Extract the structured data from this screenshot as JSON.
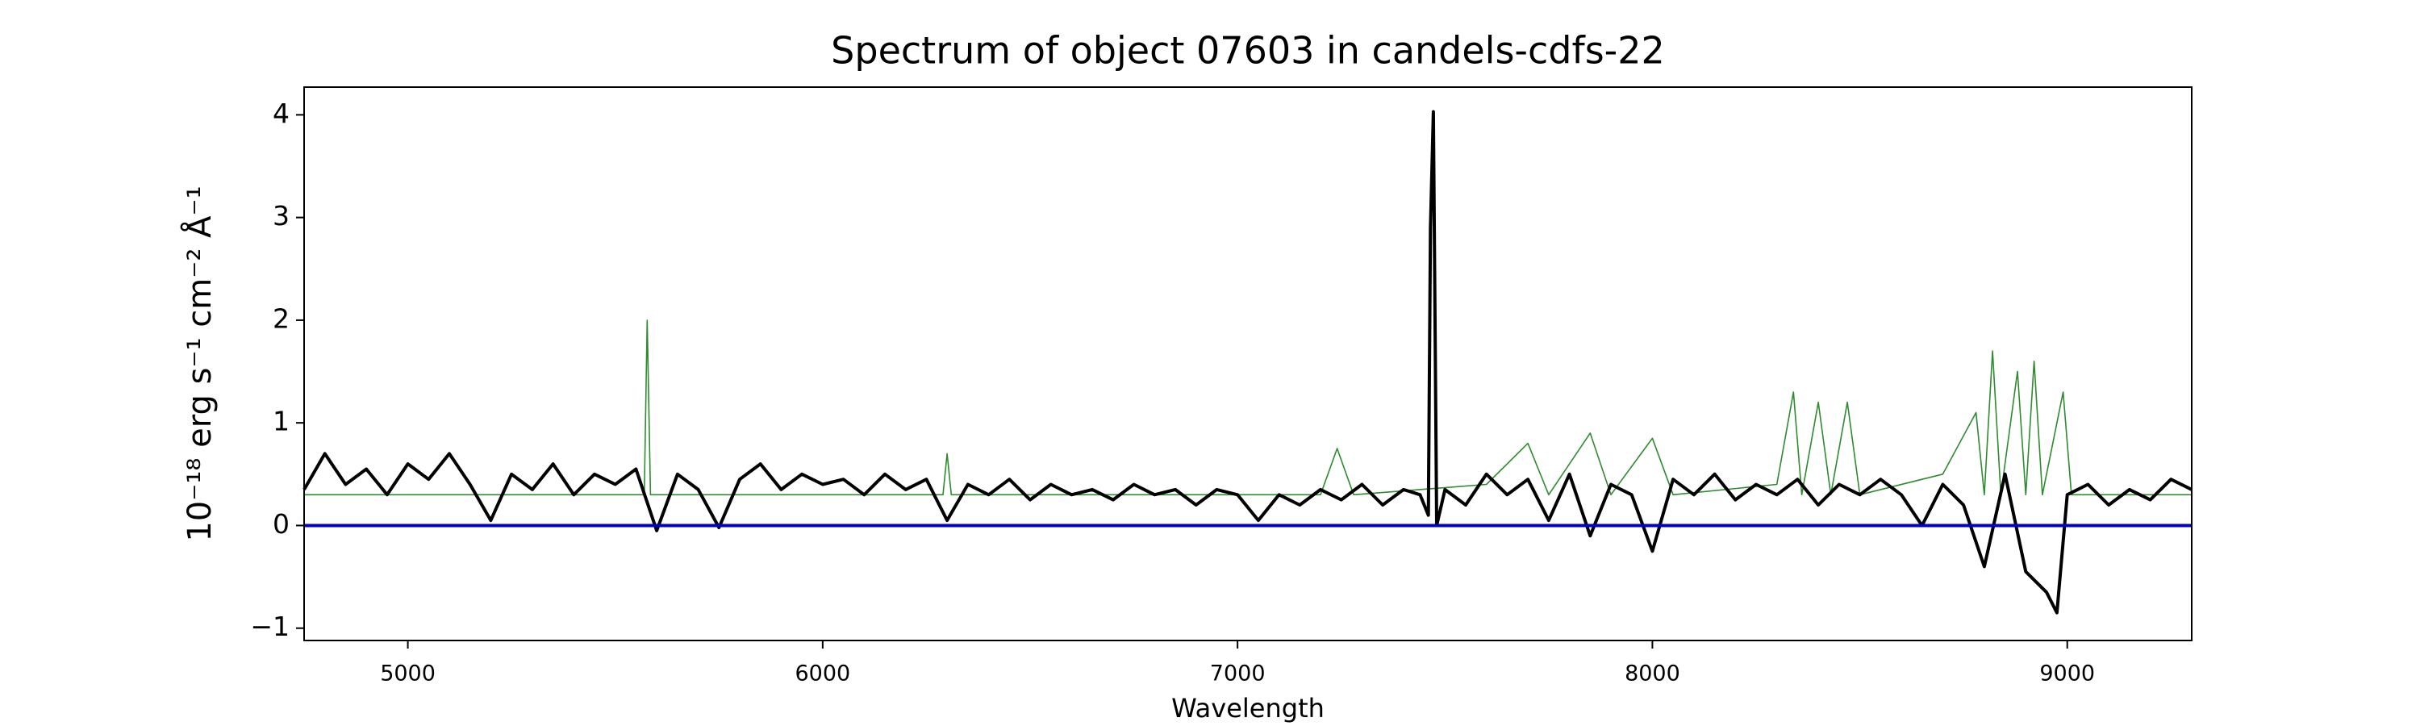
{
  "chart_data": {
    "type": "line",
    "title": "Spectrum of object 07603 in candels-cdfs-22",
    "xlabel": "Wavelength",
    "ylabel": "10⁻¹⁸ erg s⁻¹ cm⁻² Å⁻¹",
    "xlim": [
      4750,
      9300
    ],
    "ylim": [
      -1.12,
      4.27
    ],
    "xticks": [
      5000,
      6000,
      7000,
      8000,
      9000
    ],
    "yticks": [
      {
        "value": -1,
        "label": "−1"
      },
      0,
      1,
      2,
      3,
      4
    ],
    "grid": false,
    "series": [
      {
        "color": "#2e8b2e",
        "x": [
          4750,
          5000,
          5500,
          5570,
          5577,
          5585,
          6000,
          6290,
          6300,
          6310,
          7000,
          7200,
          7240,
          7280,
          7600,
          7700,
          7750,
          7850,
          7900,
          8000,
          8050,
          8300,
          8340,
          8360,
          8400,
          8430,
          8470,
          8500,
          8700,
          8780,
          8800,
          8820,
          8840,
          8880,
          8900,
          8920,
          8940,
          8990,
          9010,
          9300
        ],
        "values": [
          0.3,
          0.3,
          0.3,
          0.3,
          2.0,
          0.3,
          0.3,
          0.3,
          0.7,
          0.3,
          0.3,
          0.3,
          0.75,
          0.3,
          0.4,
          0.8,
          0.3,
          0.9,
          0.3,
          0.85,
          0.3,
          0.4,
          1.3,
          0.3,
          1.2,
          0.3,
          1.2,
          0.3,
          0.5,
          1.1,
          0.3,
          1.7,
          0.3,
          1.5,
          0.3,
          1.6,
          0.3,
          1.3,
          0.3,
          0.3
        ]
      },
      {
        "color": "#000000",
        "x": [
          4750,
          4800,
          4850,
          4900,
          4950,
          5000,
          5050,
          5100,
          5150,
          5200,
          5250,
          5300,
          5350,
          5400,
          5450,
          5500,
          5550,
          5600,
          5650,
          5700,
          5750,
          5800,
          5850,
          5900,
          5950,
          6000,
          6050,
          6100,
          6150,
          6200,
          6250,
          6300,
          6350,
          6400,
          6450,
          6500,
          6550,
          6600,
          6650,
          6700,
          6750,
          6800,
          6850,
          6900,
          6950,
          7000,
          7050,
          7100,
          7150,
          7200,
          7250,
          7300,
          7350,
          7400,
          7440,
          7460,
          7465,
          7472,
          7480,
          7500,
          7550,
          7600,
          7650,
          7700,
          7750,
          7800,
          7850,
          7900,
          7950,
          8000,
          8050,
          8100,
          8150,
          8200,
          8250,
          8300,
          8350,
          8400,
          8450,
          8500,
          8550,
          8600,
          8650,
          8700,
          8750,
          8800,
          8850,
          8900,
          8950,
          8975,
          9000,
          9050,
          9100,
          9150,
          9200,
          9250,
          9300
        ],
        "values": [
          0.35,
          0.7,
          0.4,
          0.55,
          0.3,
          0.6,
          0.45,
          0.7,
          0.4,
          0.05,
          0.5,
          0.35,
          0.6,
          0.3,
          0.5,
          0.4,
          0.55,
          -0.05,
          0.5,
          0.35,
          -0.02,
          0.45,
          0.6,
          0.35,
          0.5,
          0.4,
          0.45,
          0.3,
          0.5,
          0.35,
          0.45,
          0.05,
          0.4,
          0.3,
          0.45,
          0.25,
          0.4,
          0.3,
          0.35,
          0.25,
          0.4,
          0.3,
          0.35,
          0.2,
          0.35,
          0.3,
          0.05,
          0.3,
          0.2,
          0.35,
          0.25,
          0.4,
          0.2,
          0.35,
          0.3,
          0.1,
          2.9,
          4.03,
          0.0,
          0.35,
          0.2,
          0.5,
          0.3,
          0.45,
          0.05,
          0.5,
          -0.1,
          0.4,
          0.3,
          -0.25,
          0.45,
          0.3,
          0.5,
          0.25,
          0.4,
          0.3,
          0.45,
          0.2,
          0.4,
          0.3,
          0.45,
          0.3,
          0.0,
          0.4,
          0.2,
          -0.4,
          0.5,
          -0.45,
          -0.65,
          -0.85,
          0.3,
          0.4,
          0.2,
          0.35,
          0.25,
          0.45,
          0.35
        ]
      },
      {
        "color": "#0000cc",
        "x": [
          4750,
          9300
        ],
        "values": [
          0,
          0
        ]
      }
    ]
  }
}
